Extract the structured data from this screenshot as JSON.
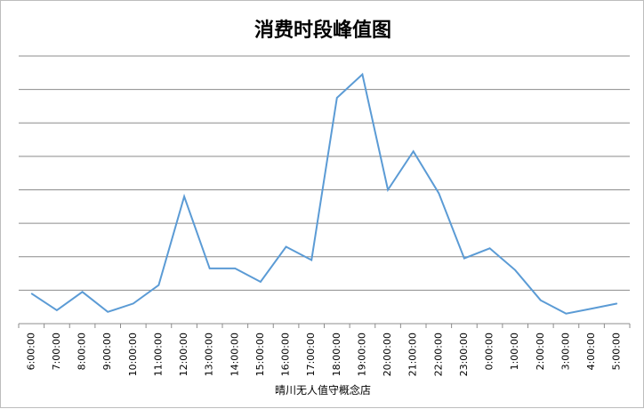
{
  "chart_data": {
    "type": "line",
    "title": "消费时段峰值图",
    "xlabel": "晴川无人值守概念店",
    "ylabel": "",
    "categories": [
      "6:00:00",
      "7:00:00",
      "8:00:00",
      "9:00:00",
      "10:00:00",
      "11:00:00",
      "12:00:00",
      "13:00:00",
      "14:00:00",
      "15:00:00",
      "16:00:00",
      "17:00:00",
      "18:00:00",
      "19:00:00",
      "20:00:00",
      "21:00:00",
      "22:00:00",
      "23:00:00",
      "0:00:00",
      "1:00:00",
      "2:00:00",
      "3:00:00",
      "4:00:00",
      "5:00:00"
    ],
    "series": [
      {
        "values": [
          0.9,
          0.4,
          0.95,
          0.35,
          0.6,
          1.15,
          3.8,
          1.65,
          1.65,
          1.25,
          2.3,
          1.9,
          6.75,
          7.45,
          4.0,
          5.15,
          3.9,
          1.95,
          2.25,
          1.6,
          0.7,
          0.3,
          0.45,
          0.6
        ],
        "color": "#5b9bd5"
      }
    ],
    "ylim": [
      0,
      8
    ],
    "y_tick_labels_shown": false,
    "grid": "horizontal",
    "gridline_color": "#8c8c8c",
    "legend": "none"
  }
}
